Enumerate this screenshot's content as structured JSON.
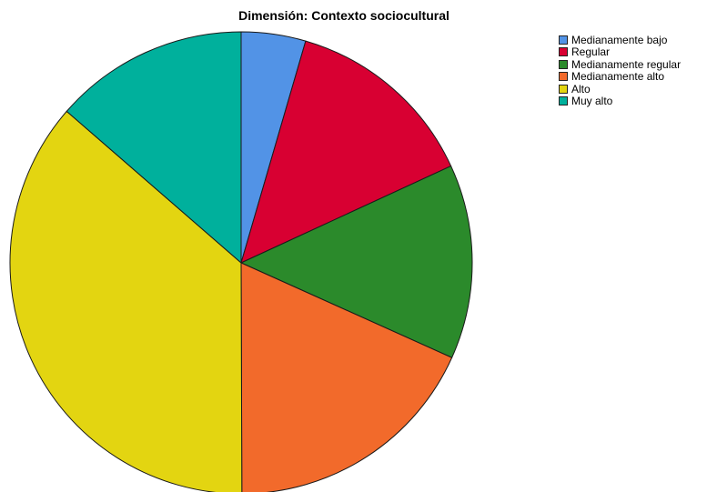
{
  "chart_data": {
    "type": "pie",
    "title": "Dimensión: Contexto sociocultural",
    "categories": [
      "Medianamente bajo",
      "Regular",
      "Medianamente regular",
      "Medianamente alto",
      "Alto",
      "Muy alto"
    ],
    "values": [
      4.5,
      13.6,
      13.6,
      18.2,
      36.4,
      13.6
    ],
    "colors": [
      "#5293E6",
      "#D80032",
      "#2B8A2B",
      "#F26A2B",
      "#E3D511",
      "#00B09C"
    ],
    "start": "12 o'clock",
    "direction": "clockwise",
    "legend": "top-right"
  }
}
